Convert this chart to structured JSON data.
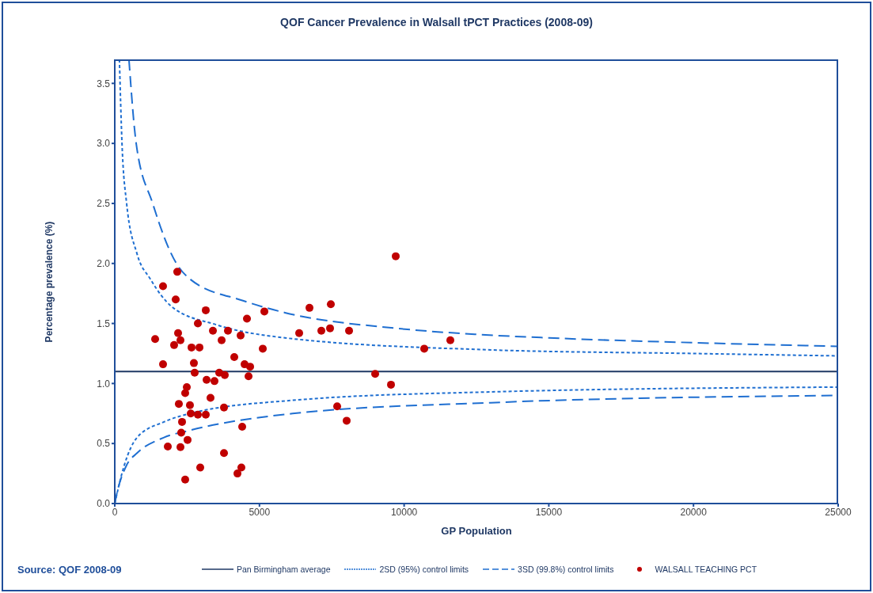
{
  "chart_data": {
    "type": "scatter",
    "title": "QOF Cancer Prevalence in Walsall tPCT Practices (2008-09)",
    "xlabel": "GP Population",
    "ylabel": "Percentage prevalence (%)",
    "annotations": [
      "Source: QOF 2008-09"
    ],
    "xlim": [
      0,
      25000
    ],
    "xticks": [
      0,
      5000,
      10000,
      15000,
      20000,
      25000
    ],
    "ylim": [
      0,
      3.7
    ],
    "yticks": [
      {
        "value": 0,
        "label": "0.0"
      },
      {
        "value": 0.5,
        "label": "0.5"
      },
      {
        "value": 1,
        "label": "1.0"
      },
      {
        "value": 1.5,
        "label": "1.5"
      },
      {
        "value": 2,
        "label": "2.0"
      },
      {
        "value": 2.5,
        "label": "2.5"
      },
      {
        "value": 3,
        "label": "3.0"
      },
      {
        "value": 3.5,
        "label": "3.5"
      }
    ],
    "legend": "bottom",
    "series": [
      {
        "type": "line",
        "name": "Pan Birmingham average",
        "color": "#1f3864",
        "line_style": "solid",
        "marker": "none",
        "x": [
          0,
          25000
        ],
        "values": [
          1.1,
          1.1
        ]
      },
      {
        "type": "line",
        "name": "2SD (95%) control limits",
        "color": "#1f6fd1",
        "line_style": "dotted",
        "marker": "none",
        "x": [
          160,
          250,
          410,
          770,
          1230,
          1970,
          3500,
          5880,
          12990,
          20000,
          25000
        ],
        "values": [
          3.7,
          3.0,
          2.5,
          2.08,
          1.87,
          1.64,
          1.49,
          1.38,
          1.28,
          1.25,
          1.23
        ]
      },
      {
        "type": "line",
        "color": "#1f6fd1",
        "line_style": "dotted",
        "marker": "none",
        "x": [
          0,
          330,
          770,
          1700,
          2600,
          6150,
          12990,
          25000
        ],
        "values": [
          0,
          0.32,
          0.55,
          0.68,
          0.75,
          0.86,
          0.93,
          0.97
        ]
      },
      {
        "type": "line",
        "name": "3SD  (99.8%) control limits",
        "color": "#1f6fd1",
        "line_style": "dashed",
        "marker": "none",
        "x": [
          490,
          740,
          1310,
          2130,
          2600,
          4430,
          5880,
          9710,
          12440,
          15000,
          20000,
          25000
        ],
        "values": [
          3.7,
          3.0,
          2.5,
          2.0,
          1.87,
          1.69,
          1.59,
          1.46,
          1.41,
          1.38,
          1.34,
          1.31
        ]
      },
      {
        "type": "line",
        "color": "#1f6fd1",
        "line_style": "dashed",
        "marker": "none",
        "x": [
          0,
          50,
          410,
          770,
          1700,
          2600,
          6150,
          12990,
          25000
        ],
        "values": [
          0,
          0.06,
          0.32,
          0.42,
          0.55,
          0.61,
          0.75,
          0.84,
          0.9
        ]
      },
      {
        "name": "WALSALL TEACHING PCT",
        "color": "#c00000",
        "marker": "circle",
        "x": [
          1395,
          1668,
          1668,
          1833,
          2106,
          2160,
          2051,
          2188,
          2270,
          2215,
          2270,
          2297,
          2325,
          2434,
          2489,
          2434,
          2516,
          2598,
          2653,
          2735,
          2762,
          2626,
          2872,
          2872,
          2927,
          2954,
          3145,
          3173,
          3145,
          3309,
          3392,
          3446,
          3610,
          3693,
          3775,
          3775,
          3802,
          3911,
          4130,
          4240,
          4349,
          4376,
          4404,
          4486,
          4568,
          4677,
          4623,
          5115,
          5170,
          6373,
          6729,
          7139,
          7440,
          7467,
          8097,
          7686,
          8014,
          8999,
          9546,
          9710,
          10695,
          11597
        ],
        "values": [
          1.37,
          1.81,
          1.16,
          0.475,
          1.7,
          1.93,
          1.32,
          1.42,
          1.36,
          0.83,
          0.47,
          0.59,
          0.68,
          0.92,
          0.97,
          0.2,
          0.53,
          0.82,
          1.3,
          1.17,
          1.09,
          0.75,
          0.74,
          1.5,
          1.3,
          0.3,
          1.61,
          1.03,
          0.74,
          0.88,
          1.44,
          1.02,
          1.09,
          1.36,
          0.42,
          0.8,
          1.07,
          1.44,
          1.22,
          0.25,
          1.4,
          0.3,
          0.64,
          1.16,
          1.54,
          1.14,
          1.06,
          1.29,
          1.6,
          1.42,
          1.63,
          1.44,
          1.46,
          1.66,
          1.44,
          0.81,
          0.69,
          1.08,
          0.99,
          2.06,
          1.29,
          1.36
        ]
      }
    ]
  }
}
